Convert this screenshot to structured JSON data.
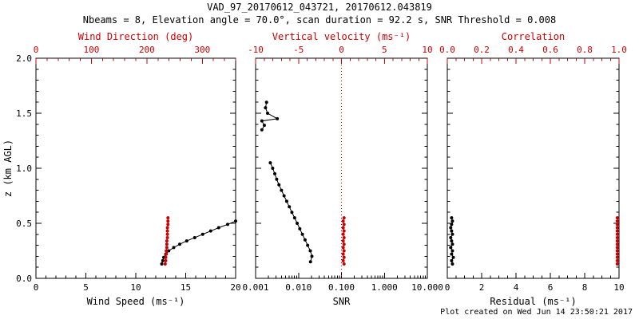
{
  "header": {
    "title": "VAD_97_20170612_043721, 20170612.043819",
    "subtitle": "Nbeams = 8, Elevation angle = 70.0°, scan duration = 92.2 s, SNR Threshold = 0.008"
  },
  "footer": {
    "created": "Plot created on Wed Jun 14 23:50:21 2017"
  },
  "colors": {
    "background": "#ffffff",
    "foreground": "#000000",
    "accent": "#cc0000"
  },
  "chart_data": [
    {
      "type": "line",
      "id": "wind",
      "y_axis": {
        "label": "z (km AGL)",
        "range": [
          0,
          2
        ],
        "ticks": [
          0,
          0.5,
          1,
          1.5,
          2
        ],
        "labels": [
          "0.0",
          "0.5",
          "1.0",
          "1.5",
          "2.0"
        ],
        "minor_step": 0.1,
        "show_labels": true
      },
      "bottom_axis": {
        "label": "Wind Speed (ms⁻¹)",
        "scale": "linear",
        "range": [
          0,
          20
        ],
        "ticks": [
          0,
          5,
          10,
          15,
          20
        ],
        "labels": [
          "0",
          "5",
          "10",
          "15",
          "20"
        ],
        "minor_step": 1
      },
      "top_axis": {
        "label": "Wind Direction (deg)",
        "scale": "linear",
        "range": [
          0,
          360
        ],
        "ticks": [
          0,
          100,
          200,
          300
        ],
        "labels": [
          "0",
          "100",
          "200",
          "300"
        ],
        "minor_step": 20
      },
      "series": [
        {
          "name": "wind-speed",
          "axis": "bottom",
          "color": "#000000",
          "marker": true,
          "segments": [
            [
              [
                12.6,
                0.13
              ],
              [
                12.7,
                0.16
              ],
              [
                12.8,
                0.19
              ],
              [
                13.0,
                0.22
              ],
              [
                13.3,
                0.25
              ],
              [
                13.8,
                0.28
              ],
              [
                14.4,
                0.31
              ],
              [
                15.1,
                0.34
              ],
              [
                15.9,
                0.37
              ],
              [
                16.7,
                0.4
              ],
              [
                17.5,
                0.43
              ],
              [
                18.3,
                0.46
              ],
              [
                19.2,
                0.49
              ],
              [
                20.0,
                0.52
              ]
            ]
          ]
        },
        {
          "name": "wind-direction",
          "axis": "top",
          "color": "#cc0000",
          "marker": true,
          "segments": [
            [
              [
                233,
                0.13
              ],
              [
                234,
                0.16
              ],
              [
                234,
                0.19
              ],
              [
                235,
                0.22
              ],
              [
                235,
                0.25
              ],
              [
                236,
                0.28
              ],
              [
                236,
                0.31
              ],
              [
                236,
                0.34
              ],
              [
                237,
                0.37
              ],
              [
                237,
                0.4
              ],
              [
                237,
                0.43
              ],
              [
                237,
                0.46
              ],
              [
                238,
                0.49
              ],
              [
                238,
                0.52
              ],
              [
                238,
                0.55
              ]
            ]
          ]
        }
      ]
    },
    {
      "type": "line",
      "id": "snr",
      "y_axis": {
        "label": "",
        "range": [
          0,
          2
        ],
        "ticks": [
          0,
          0.5,
          1,
          1.5,
          2
        ],
        "labels": [
          "0.0",
          "0.5",
          "1.0",
          "1.5",
          "2.0"
        ],
        "minor_step": 0.1,
        "show_labels": false
      },
      "bottom_axis": {
        "label": "SNR",
        "scale": "log",
        "range": [
          0.001,
          10
        ],
        "ticks": [
          0.001,
          0.01,
          0.1,
          1,
          10
        ],
        "labels": [
          "0.001",
          "0.010",
          "0.100",
          "1.000",
          "10.000"
        ]
      },
      "top_axis": {
        "label": "Vertical velocity (ms⁻¹)",
        "scale": "linear",
        "range": [
          -10,
          10
        ],
        "ticks": [
          -10,
          -5,
          0,
          5,
          10
        ],
        "labels": [
          "-10",
          "-5",
          "0",
          "5",
          "10"
        ],
        "minor_step": 1,
        "refline": 0
      },
      "series": [
        {
          "name": "snr",
          "axis": "bottom",
          "color": "#000000",
          "marker": true,
          "segments": [
            [
              [
                0.0018,
                1.6
              ],
              [
                0.0017,
                1.55
              ],
              [
                0.0019,
                1.5
              ],
              [
                0.0032,
                1.45
              ],
              [
                0.0014,
                1.43
              ],
              [
                0.0016,
                1.39
              ],
              [
                0.0014,
                1.35
              ]
            ],
            [
              [
                0.0022,
                1.05
              ],
              [
                0.0025,
                1.0
              ],
              [
                0.0028,
                0.95
              ],
              [
                0.0031,
                0.9
              ],
              [
                0.0035,
                0.85
              ],
              [
                0.004,
                0.8
              ],
              [
                0.0046,
                0.75
              ],
              [
                0.0053,
                0.7
              ],
              [
                0.0061,
                0.65
              ],
              [
                0.007,
                0.6
              ],
              [
                0.0081,
                0.55
              ],
              [
                0.0093,
                0.5
              ],
              [
                0.0107,
                0.45
              ],
              [
                0.0123,
                0.4
              ],
              [
                0.0142,
                0.35
              ],
              [
                0.0163,
                0.3
              ],
              [
                0.0188,
                0.25
              ],
              [
                0.0205,
                0.2
              ],
              [
                0.019,
                0.15
              ]
            ]
          ]
        },
        {
          "name": "vertical-velocity",
          "axis": "top",
          "color": "#cc0000",
          "marker": true,
          "segments": [
            [
              [
                0.3,
                0.13
              ],
              [
                0.2,
                0.16
              ],
              [
                0.3,
                0.19
              ],
              [
                0.2,
                0.22
              ],
              [
                0.3,
                0.25
              ],
              [
                0.2,
                0.28
              ],
              [
                0.3,
                0.31
              ],
              [
                0.2,
                0.34
              ],
              [
                0.3,
                0.37
              ],
              [
                0.2,
                0.4
              ],
              [
                0.3,
                0.43
              ],
              [
                0.2,
                0.46
              ],
              [
                0.3,
                0.49
              ],
              [
                0.2,
                0.52
              ],
              [
                0.3,
                0.55
              ]
            ]
          ]
        }
      ]
    },
    {
      "type": "line",
      "id": "residual",
      "y_axis": {
        "label": "",
        "range": [
          0,
          2
        ],
        "ticks": [
          0,
          0.5,
          1,
          1.5,
          2
        ],
        "labels": [
          "0.0",
          "0.5",
          "1.0",
          "1.5",
          "2.0"
        ],
        "minor_step": 0.1,
        "show_labels": false
      },
      "bottom_axis": {
        "label": "Residual (ms⁻¹)",
        "scale": "linear",
        "range": [
          0,
          10
        ],
        "ticks": [
          0,
          2,
          4,
          6,
          8,
          10
        ],
        "labels": [
          "0",
          "2",
          "4",
          "6",
          "8",
          "10"
        ],
        "minor_step": 0.5
      },
      "top_axis": {
        "label": "Correlation",
        "scale": "linear",
        "range": [
          0,
          1
        ],
        "ticks": [
          0,
          0.2,
          0.4,
          0.6,
          0.8,
          1
        ],
        "labels": [
          "0.0",
          "0.2",
          "0.4",
          "0.6",
          "0.8",
          "1.0"
        ],
        "minor_step": 0.05
      },
      "series": [
        {
          "name": "residual",
          "axis": "bottom",
          "color": "#000000",
          "marker": true,
          "segments": [
            [
              [
                0.3,
                0.13
              ],
              [
                0.25,
                0.16
              ],
              [
                0.35,
                0.19
              ],
              [
                0.25,
                0.22
              ],
              [
                0.3,
                0.25
              ],
              [
                0.2,
                0.28
              ],
              [
                0.3,
                0.31
              ],
              [
                0.25,
                0.34
              ],
              [
                0.2,
                0.37
              ],
              [
                0.3,
                0.4
              ],
              [
                0.25,
                0.43
              ],
              [
                0.2,
                0.46
              ],
              [
                0.25,
                0.49
              ],
              [
                0.3,
                0.52
              ],
              [
                0.25,
                0.55
              ]
            ]
          ]
        },
        {
          "name": "correlation",
          "axis": "top",
          "color": "#cc0000",
          "marker": true,
          "segments": [
            [
              [
                0.99,
                0.13
              ],
              [
                0.99,
                0.16
              ],
              [
                0.99,
                0.19
              ],
              [
                0.99,
                0.22
              ],
              [
                0.99,
                0.25
              ],
              [
                0.99,
                0.28
              ],
              [
                0.99,
                0.31
              ],
              [
                0.99,
                0.34
              ],
              [
                0.99,
                0.37
              ],
              [
                0.99,
                0.4
              ],
              [
                0.99,
                0.43
              ],
              [
                0.99,
                0.46
              ],
              [
                0.99,
                0.49
              ],
              [
                0.99,
                0.52
              ],
              [
                0.99,
                0.55
              ]
            ]
          ]
        }
      ]
    }
  ]
}
